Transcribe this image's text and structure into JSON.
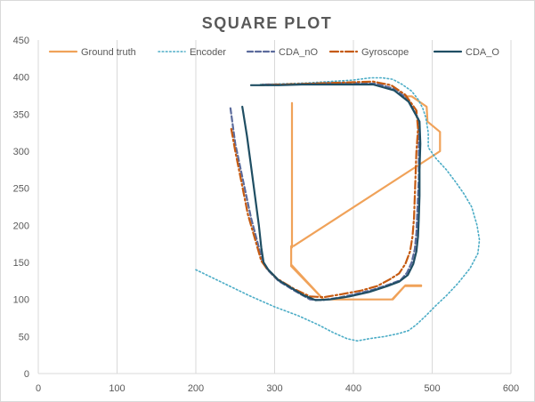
{
  "chart_data": {
    "type": "scatter",
    "title": "SQUARE PLOT",
    "xlabel": "",
    "ylabel": "",
    "xlim": [
      0,
      600
    ],
    "ylim": [
      0,
      450
    ],
    "x_ticks": [
      0,
      100,
      200,
      300,
      400,
      500,
      600
    ],
    "y_ticks": [
      0,
      50,
      100,
      150,
      200,
      250,
      300,
      350,
      400,
      450
    ],
    "grid": "vertical",
    "legend_position": "top",
    "series": [
      {
        "name": "Ground truth",
        "color": "#f0a259",
        "style": "solid",
        "points": [
          [
            322,
            365
          ],
          [
            322,
            170
          ],
          [
            321,
            170
          ],
          [
            321,
            147
          ],
          [
            362,
            100
          ],
          [
            449,
            100
          ],
          [
            465,
            118
          ],
          [
            486,
            118
          ],
          [
            486,
            119
          ],
          [
            480,
            119
          ],
          [
            466,
            119
          ],
          [
            450,
            100
          ],
          [
            362,
            100
          ],
          [
            321,
            145
          ],
          [
            321,
            172
          ],
          [
            322,
            172
          ],
          [
            322,
            172
          ],
          [
            324,
            172
          ],
          [
            510,
            300
          ],
          [
            510,
            326
          ],
          [
            494,
            340
          ],
          [
            493,
            360
          ],
          [
            474,
            374
          ],
          [
            463,
            374
          ],
          [
            461,
            376
          ]
        ]
      },
      {
        "name": "Encoder",
        "color": "#4bacc6",
        "style": "dotted",
        "points": [
          [
            200,
            140
          ],
          [
            235,
            122
          ],
          [
            268,
            105
          ],
          [
            300,
            90
          ],
          [
            330,
            78
          ],
          [
            355,
            66
          ],
          [
            375,
            55
          ],
          [
            392,
            47
          ],
          [
            405,
            44
          ],
          [
            420,
            47
          ],
          [
            440,
            50
          ],
          [
            458,
            54
          ],
          [
            470,
            58
          ],
          [
            480,
            66
          ],
          [
            492,
            78
          ],
          [
            505,
            92
          ],
          [
            518,
            105
          ],
          [
            533,
            122
          ],
          [
            548,
            142
          ],
          [
            558,
            162
          ],
          [
            560,
            180
          ],
          [
            557,
            200
          ],
          [
            550,
            225
          ],
          [
            540,
            243
          ],
          [
            530,
            258
          ],
          [
            518,
            275
          ],
          [
            505,
            290
          ],
          [
            495,
            305
          ],
          [
            495,
            325
          ],
          [
            492,
            345
          ],
          [
            488,
            358
          ],
          [
            482,
            370
          ],
          [
            474,
            381
          ],
          [
            462,
            390
          ],
          [
            450,
            397
          ],
          [
            437,
            399
          ],
          [
            422,
            399
          ],
          [
            400,
            396
          ],
          [
            370,
            394
          ],
          [
            340,
            392
          ],
          [
            310,
            391
          ],
          [
            280,
            390
          ]
        ]
      },
      {
        "name": "CDA_nO",
        "color": "#5b6b9c",
        "style": "dash",
        "points": [
          [
            244,
            358
          ],
          [
            250,
            310
          ],
          [
            260,
            260
          ],
          [
            270,
            210
          ],
          [
            280,
            170
          ],
          [
            285,
            150
          ],
          [
            291,
            140
          ],
          [
            305,
            125
          ],
          [
            325,
            112
          ],
          [
            345,
            100
          ],
          [
            360,
            99
          ],
          [
            380,
            102
          ],
          [
            402,
            107
          ],
          [
            425,
            113
          ],
          [
            445,
            120
          ],
          [
            460,
            126
          ],
          [
            468,
            136
          ],
          [
            474,
            150
          ],
          [
            478,
            168
          ],
          [
            480,
            190
          ],
          [
            481,
            215
          ],
          [
            482,
            240
          ],
          [
            483,
            265
          ],
          [
            483,
            290
          ],
          [
            483,
            320
          ],
          [
            482,
            345
          ],
          [
            470,
            368
          ],
          [
            455,
            383
          ],
          [
            430,
            391
          ],
          [
            400,
            392
          ],
          [
            370,
            392
          ],
          [
            340,
            391
          ],
          [
            310,
            390
          ],
          [
            285,
            390
          ]
        ]
      },
      {
        "name": "Gyroscope",
        "color": "#c55a11",
        "style": "dashdot",
        "points": [
          [
            245,
            330
          ],
          [
            250,
            300
          ],
          [
            258,
            258
          ],
          [
            266,
            215
          ],
          [
            276,
            178
          ],
          [
            283,
            152
          ],
          [
            290,
            142
          ],
          [
            303,
            128
          ],
          [
            325,
            114
          ],
          [
            345,
            104
          ],
          [
            362,
            103
          ],
          [
            385,
            107
          ],
          [
            410,
            112
          ],
          [
            430,
            118
          ],
          [
            446,
            127
          ],
          [
            458,
            135
          ],
          [
            466,
            148
          ],
          [
            472,
            165
          ],
          [
            475,
            185
          ],
          [
            477,
            210
          ],
          [
            478,
            240
          ],
          [
            479,
            270
          ],
          [
            480,
            300
          ],
          [
            482,
            330
          ],
          [
            480,
            355
          ],
          [
            466,
            376
          ],
          [
            448,
            389
          ],
          [
            425,
            394
          ],
          [
            398,
            393
          ],
          [
            370,
            392
          ],
          [
            340,
            391
          ],
          [
            312,
            390
          ],
          [
            282,
            389
          ]
        ]
      },
      {
        "name": "CDA_O",
        "color": "#1f4e63",
        "style": "solid",
        "points": [
          [
            259,
            360
          ],
          [
            265,
            320
          ],
          [
            270,
            280
          ],
          [
            275,
            240
          ],
          [
            280,
            200
          ],
          [
            283,
            170
          ],
          [
            286,
            150
          ],
          [
            292,
            140
          ],
          [
            305,
            126
          ],
          [
            322,
            115
          ],
          [
            336,
            106
          ],
          [
            352,
            99
          ],
          [
            370,
            100
          ],
          [
            395,
            104
          ],
          [
            420,
            110
          ],
          [
            443,
            118
          ],
          [
            458,
            124
          ],
          [
            469,
            133
          ],
          [
            476,
            148
          ],
          [
            480,
            165
          ],
          [
            482,
            185
          ],
          [
            483,
            210
          ],
          [
            484,
            240
          ],
          [
            484,
            275
          ],
          [
            485,
            310
          ],
          [
            484,
            340
          ],
          [
            470,
            367
          ],
          [
            452,
            382
          ],
          [
            425,
            390
          ],
          [
            395,
            390
          ],
          [
            365,
            390
          ],
          [
            335,
            390
          ],
          [
            305,
            389
          ],
          [
            270,
            389
          ]
        ]
      }
    ]
  }
}
